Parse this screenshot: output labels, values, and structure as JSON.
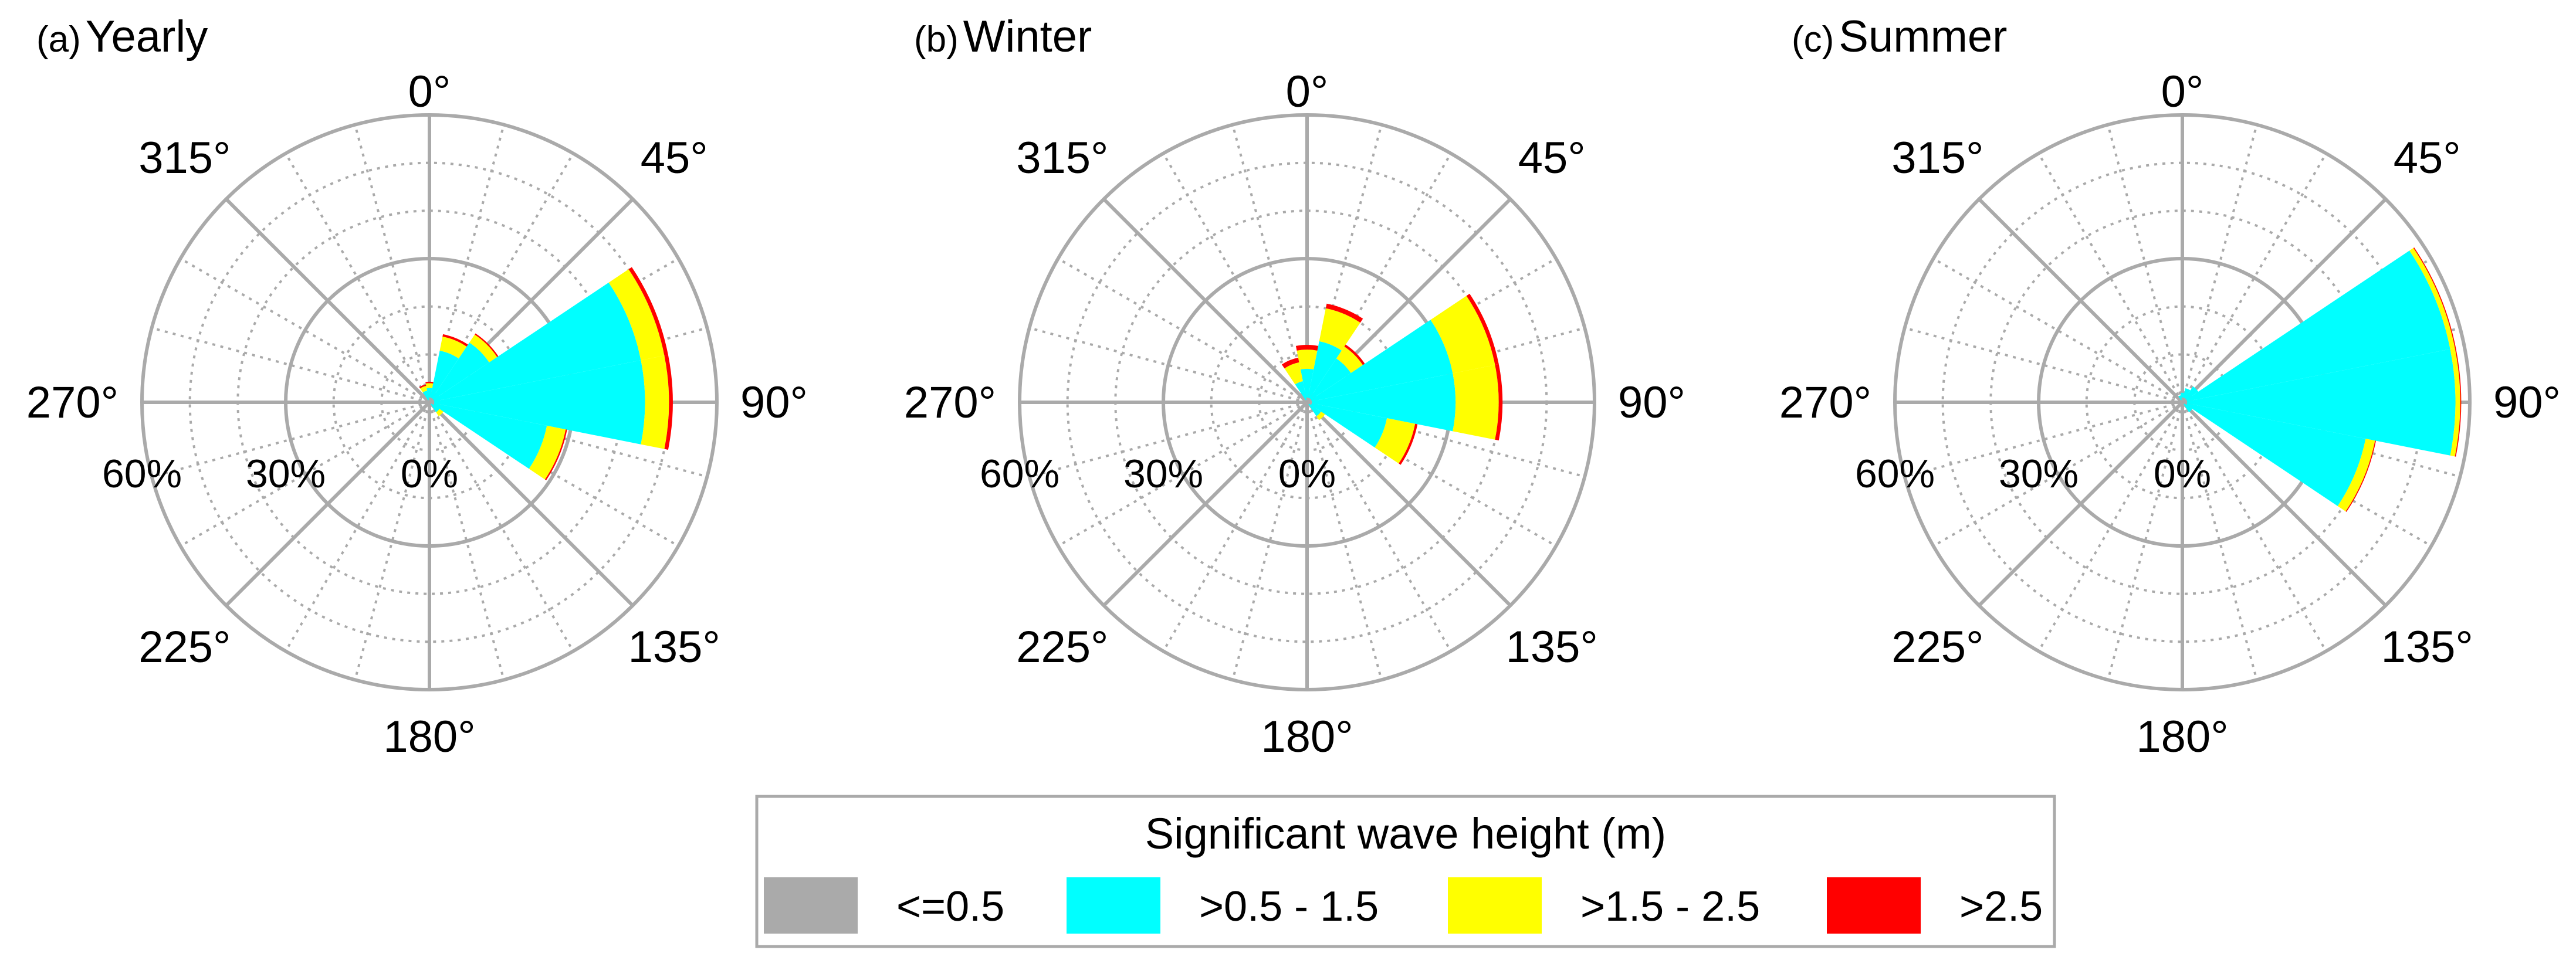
{
  "chart_data": {
    "type": "polar-stacked-bar",
    "legend": {
      "title": "Significant wave height (m)",
      "placement": "bottom-center",
      "entries": [
        {
          "label": "<=0.5",
          "color": "#aaaaaa"
        },
        {
          "label": ">0.5 - 1.5",
          "color": "#00ffff"
        },
        {
          "label": ">1.5 - 2.5",
          "color": "#ffff00"
        },
        {
          "label": ">2.5",
          "color": "#ff0000"
        }
      ]
    },
    "angle_labels": [
      "0°",
      "45°",
      "90°",
      "135°",
      "180°",
      "225°",
      "270°",
      "315°"
    ],
    "radial_ticks": [
      "0%",
      "30%",
      "60%"
    ],
    "radial_max": 60,
    "sector_width_deg": 22.5,
    "directions": [
      0,
      22.5,
      45,
      67.5,
      90,
      112.5,
      135,
      157.5,
      180,
      202.5,
      225,
      247.5,
      270,
      292.5,
      315,
      337.5
    ],
    "panels": [
      {
        "letter": "(a)",
        "name": "Yearly",
        "series": [
          {
            "name": "<=0.5",
            "values": [
              1,
              1,
              1,
              1,
              1,
              1,
              0.5,
              0.5,
              0.5,
              0.5,
              0.5,
              0.5,
              0.5,
              0.5,
              0.5,
              0.5
            ]
          },
          {
            "name": ">0.5 - 1.5",
            "values": [
              2,
              10,
              14,
              44,
              44,
              24,
              2,
              0,
              0,
              0,
              0,
              0,
              0,
              0,
              0,
              2
            ]
          },
          {
            "name": ">1.5 - 2.5",
            "values": [
              1,
              3,
              2,
              5,
              5,
              4,
              1,
              0,
              0,
              0,
              0,
              0,
              0,
              0,
              0,
              1
            ]
          },
          {
            "name": ">2.5",
            "values": [
              0.3,
              0.5,
              0.3,
              0.8,
              0.8,
              0.3,
              0,
              0,
              0,
              0,
              0,
              0,
              0,
              0,
              0,
              0.3
            ]
          }
        ]
      },
      {
        "letter": "(b)",
        "name": "Winter",
        "series": [
          {
            "name": "<=0.5",
            "values": [
              1,
              1,
              1,
              1,
              1,
              1,
              0.5,
              0.5,
              0.5,
              0.5,
              0.5,
              0.5,
              0.5,
              0.5,
              0.5,
              0.5
            ]
          },
          {
            "name": ">0.5 - 1.5",
            "values": [
              6,
              12,
              10,
              30,
              30,
              16,
              3,
              0,
              0,
              0,
              0,
              0,
              0,
              0,
              0,
              4
            ]
          },
          {
            "name": ">1.5 - 2.5",
            "values": [
              4,
              7,
              3,
              9,
              9,
              6,
              1,
              0,
              0,
              0,
              0,
              0,
              0,
              0,
              0,
              4
            ]
          },
          {
            "name": ">2.5",
            "values": [
              1,
              1,
              0.5,
              0.8,
              0.8,
              0.5,
              0,
              0,
              0,
              0,
              0,
              0,
              0,
              0,
              0,
              1
            ]
          }
        ]
      },
      {
        "letter": "(c)",
        "name": "Summer",
        "series": [
          {
            "name": "<=0.5",
            "values": [
              1,
              1,
              1,
              1,
              1,
              1,
              0.5,
              0.5,
              0.5,
              0.5,
              0.5,
              0.5,
              0.5,
              0.5,
              0.5,
              0.5
            ]
          },
          {
            "name": ">0.5 - 1.5",
            "values": [
              1,
              2,
              3,
              56,
              56,
              38,
              2,
              0,
              0,
              0,
              0,
              0,
              0,
              0,
              0,
              1
            ]
          },
          {
            "name": ">1.5 - 2.5",
            "values": [
              0,
              0,
              0,
              1,
              1,
              2,
              0,
              0,
              0,
              0,
              0,
              0,
              0,
              0,
              0,
              0
            ]
          },
          {
            "name": ">2.5",
            "values": [
              0,
              0,
              0,
              0.2,
              0.2,
              0.2,
              0,
              0,
              0,
              0,
              0,
              0,
              0,
              0,
              0,
              0
            ]
          }
        ]
      }
    ]
  }
}
